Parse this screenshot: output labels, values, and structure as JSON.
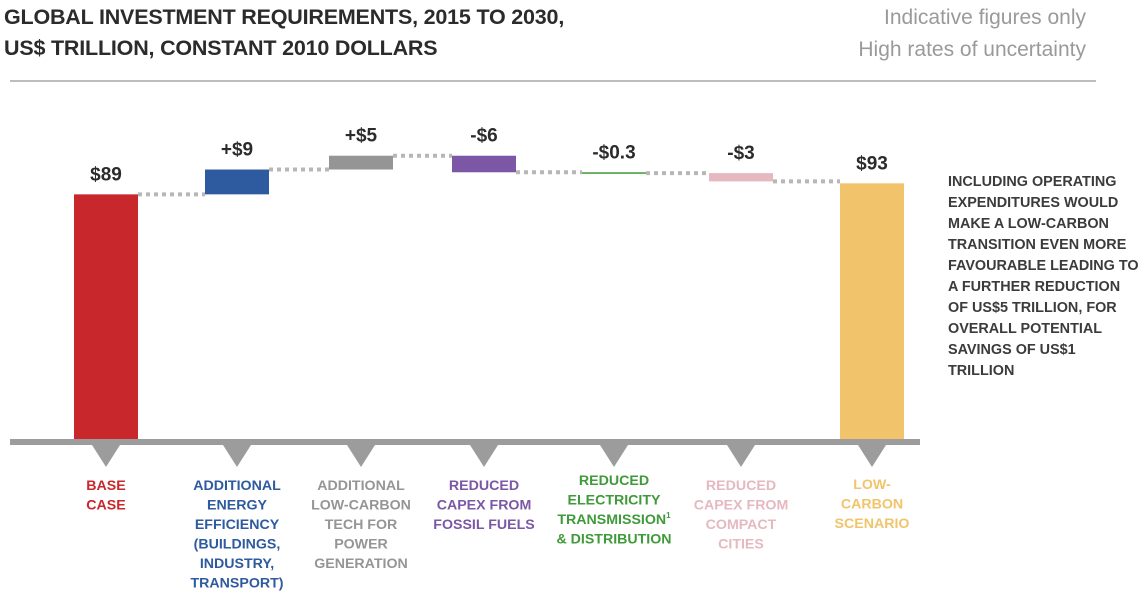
{
  "title": {
    "line1": "GLOBAL INVESTMENT REQUIREMENTS, 2015 TO 2030,",
    "line2": "US$ TRILLION, CONSTANT 2010 DOLLARS"
  },
  "disclaimer": {
    "line1": "Indicative figures only",
    "line2": "High rates of uncertainty"
  },
  "side_note": "INCLUDING OPERATING EXPENDITURES WOULD MAKE A LOW-CARBON TRANSITION EVEN MORE FAVOURABLE LEADING TO A FURTHER REDUCTION OF US$5 TRILLION, FOR OVERALL POTENTIAL SAVINGS OF US$1 TRILLION",
  "chart_data": {
    "type": "waterfall",
    "title": "Global investment requirements, 2015 to 2030, US$ trillion, constant 2010 dollars",
    "unit": "US$ trillion",
    "ylim": [
      0,
      100
    ],
    "categories": [
      {
        "name": "base_case",
        "label_lines": [
          "BASE",
          "CASE"
        ],
        "kind": "total",
        "value": 89,
        "label": "$89",
        "color": "#c8272b"
      },
      {
        "name": "additional_energy_efficiency",
        "label_lines": [
          "ADDITIONAL",
          "ENERGY",
          "EFFICIENCY",
          "(BUILDINGS,",
          "INDUSTRY,",
          "TRANSPORT)"
        ],
        "kind": "delta",
        "value": 9,
        "label": "+$9",
        "color": "#2e5a9f"
      },
      {
        "name": "additional_low_carbon_tech",
        "label_lines": [
          "ADDITIONAL",
          "LOW-CARBON",
          "TECH FOR",
          "POWER",
          "GENERATION"
        ],
        "kind": "delta",
        "value": 5,
        "label": "+$5",
        "color": "#959595"
      },
      {
        "name": "reduced_capex_fossil_fuels",
        "label_lines": [
          "REDUCED",
          "CAPEX FROM",
          "FOSSIL FUELS"
        ],
        "kind": "delta",
        "value": -6,
        "label": "-$6",
        "color": "#7b57a6"
      },
      {
        "name": "reduced_electricity_transmission",
        "label_lines": [
          "REDUCED",
          "ELECTRICITY",
          "TRANSMISSION",
          "& DISTRIBUTION"
        ],
        "superscript_line": 2,
        "superscript": "1",
        "kind": "delta",
        "value": -0.3,
        "label": "-$0.3",
        "color": "#3f9a3a"
      },
      {
        "name": "reduced_capex_compact_cities",
        "label_lines": [
          "REDUCED",
          "CAPEX FROM",
          "COMPACT",
          "CITIES"
        ],
        "kind": "delta",
        "value": -3,
        "label": "-$3",
        "color": "#e6b8c0"
      },
      {
        "name": "low_carbon_scenario",
        "label_lines": [
          "LOW-",
          "CARBON",
          "SCENARIO"
        ],
        "kind": "total",
        "value": 93,
        "label": "$93",
        "color": "#f1c46c"
      }
    ]
  }
}
